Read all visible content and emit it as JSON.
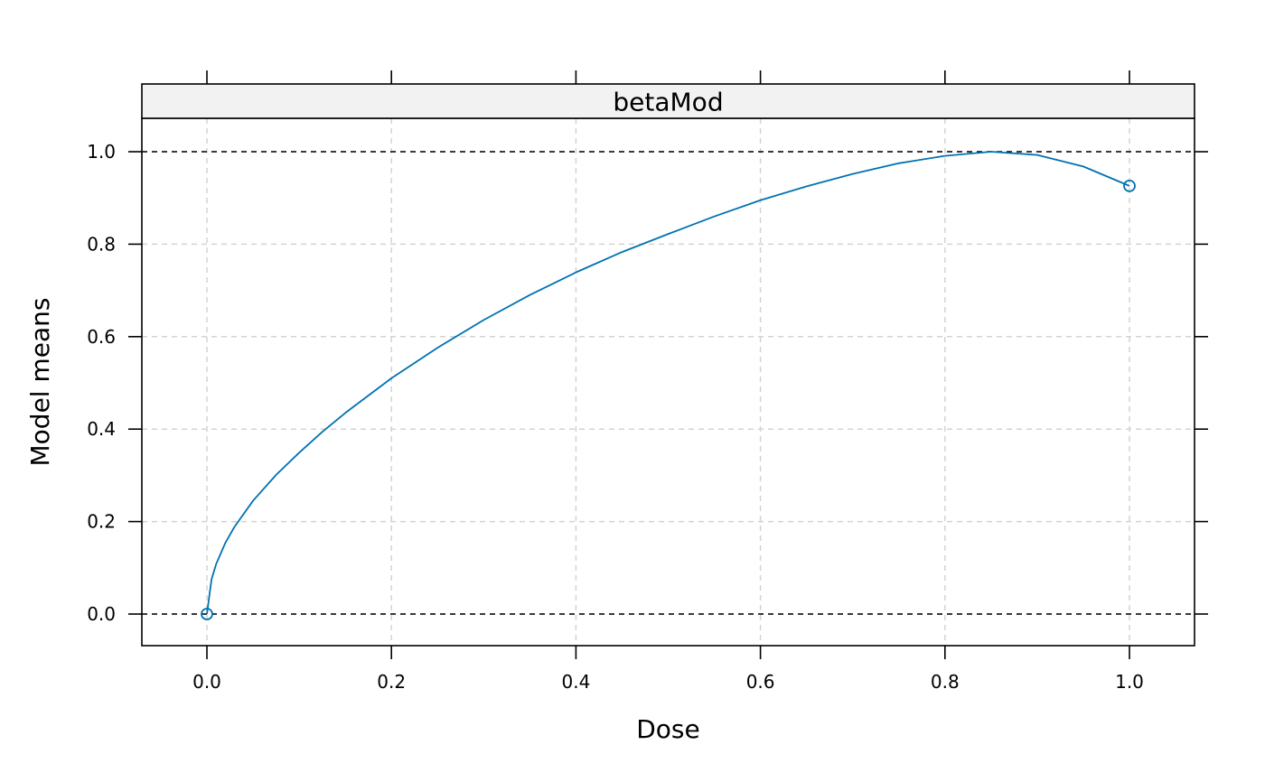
{
  "chart_data": {
    "type": "line",
    "panel_title": "betaMod",
    "xlabel": "Dose",
    "ylabel": "Model means",
    "xlim": [
      -0.07,
      1.07
    ],
    "ylim": [
      -0.07,
      1.07
    ],
    "x_ticks": [
      0.0,
      0.2,
      0.4,
      0.6,
      0.8,
      1.0
    ],
    "x_tick_labels": [
      "0.0",
      "0.2",
      "0.4",
      "0.6",
      "0.8",
      "1.0"
    ],
    "y_ticks": [
      0.0,
      0.2,
      0.4,
      0.6,
      0.8,
      1.0
    ],
    "y_tick_labels": [
      "0.0",
      "0.2",
      "0.4",
      "0.6",
      "0.8",
      "1.0"
    ],
    "grid": true,
    "reference_lines_y": [
      0.0,
      1.0
    ],
    "series": [
      {
        "color": "#0072B2",
        "x": [
          0.0,
          0.005,
          0.01,
          0.02,
          0.03,
          0.05,
          0.075,
          0.1,
          0.125,
          0.15,
          0.2,
          0.25,
          0.3,
          0.35,
          0.4,
          0.45,
          0.5,
          0.55,
          0.6,
          0.65,
          0.7,
          0.75,
          0.8,
          0.85,
          0.9,
          0.95,
          1.0
        ],
        "y": [
          0.0,
          0.075,
          0.108,
          0.154,
          0.189,
          0.245,
          0.301,
          0.349,
          0.394,
          0.435,
          0.51,
          0.576,
          0.636,
          0.69,
          0.739,
          0.783,
          0.822,
          0.86,
          0.895,
          0.925,
          0.952,
          0.975,
          0.991,
          1.0,
          0.993,
          0.968,
          0.926
        ]
      }
    ],
    "points": {
      "color": "#0072B2",
      "x": [
        0.0,
        1.0
      ],
      "y": [
        0.0,
        0.926
      ]
    }
  }
}
